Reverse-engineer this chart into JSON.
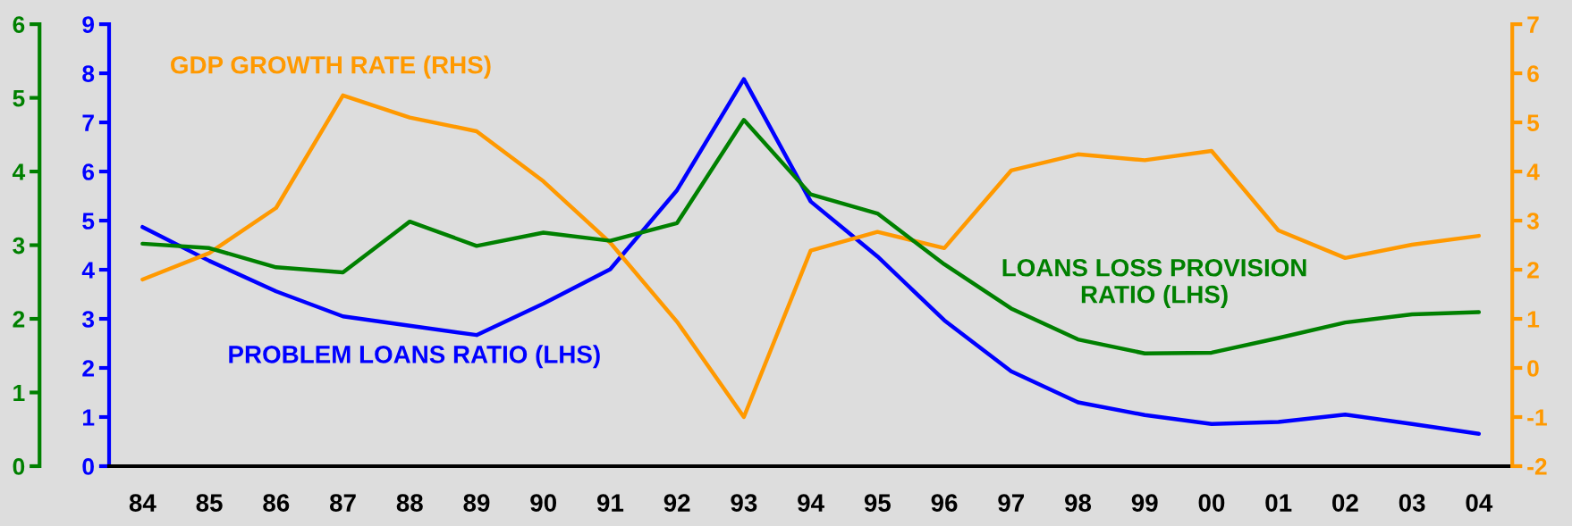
{
  "chart_data": {
    "type": "line",
    "categories": [
      "84",
      "85",
      "86",
      "87",
      "88",
      "89",
      "90",
      "91",
      "92",
      "93",
      "94",
      "95",
      "96",
      "97",
      "98",
      "99",
      "00",
      "01",
      "02",
      "03",
      "04"
    ],
    "series": [
      {
        "name": "PROBLEM LOANS RATIO (LHS)",
        "color": "#0000ff",
        "axis": "y",
        "values": [
          4.87,
          4.18,
          3.56,
          3.05,
          2.86,
          2.67,
          3.31,
          4.01,
          5.62,
          7.88,
          5.39,
          4.27,
          2.97,
          1.93,
          1.3,
          1.04,
          0.86,
          0.9,
          1.05,
          0.86,
          0.66
        ]
      },
      {
        "name": "LOANS LOSS PROVISION\nRATIO (LHS)",
        "color": "#008000",
        "axis": "y3",
        "values": [
          3.02,
          2.96,
          2.7,
          2.63,
          3.32,
          2.99,
          3.17,
          3.06,
          3.3,
          4.7,
          3.69,
          3.43,
          2.74,
          2.14,
          1.72,
          1.53,
          1.54,
          1.74,
          1.95,
          2.06,
          2.09
        ]
      },
      {
        "name": "GDP GROWTH RATE (RHS)",
        "color": "#ff9900",
        "axis": "y2",
        "values": [
          1.8,
          2.34,
          3.26,
          5.55,
          5.1,
          4.82,
          3.8,
          2.55,
          0.94,
          -1.0,
          2.39,
          2.77,
          2.44,
          4.02,
          4.35,
          4.23,
          4.42,
          2.8,
          2.24,
          2.51,
          2.69
        ]
      }
    ],
    "ylim": [
      0,
      9
    ],
    "yticks": [
      0,
      1,
      2,
      3,
      4,
      5,
      6,
      7,
      8,
      9
    ],
    "y2lim": [
      -2,
      7
    ],
    "y2ticks": [
      -2,
      -1,
      0,
      1,
      2,
      3,
      4,
      5,
      6,
      7
    ],
    "y3lim": [
      0,
      6
    ],
    "y3ticks": [
      0,
      1,
      2,
      3,
      4,
      5,
      6
    ]
  }
}
